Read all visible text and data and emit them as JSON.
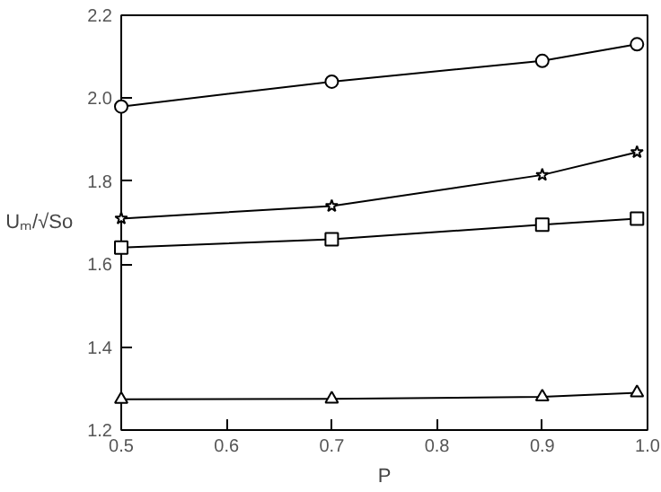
{
  "chart_data": {
    "type": "line",
    "xlabel": "P",
    "ylabel": "Uₘ/√So",
    "x": [
      0.5,
      0.7,
      0.9,
      0.99
    ],
    "series": [
      {
        "color": "#000000",
        "marker": "circle",
        "values": [
          1.98,
          2.04,
          2.09,
          2.13
        ]
      },
      {
        "color": "#000000",
        "marker": "star",
        "values": [
          1.71,
          1.74,
          1.815,
          1.87
        ]
      },
      {
        "color": "#000000",
        "marker": "square",
        "values": [
          1.64,
          1.66,
          1.695,
          1.71
        ]
      },
      {
        "color": "#000000",
        "marker": "triangle",
        "values": [
          1.274,
          1.275,
          1.28,
          1.29
        ]
      }
    ],
    "xlim": [
      0.5,
      1.0
    ],
    "xticks": [
      0.5,
      0.6,
      0.7,
      0.8,
      0.9,
      {
        "value": 1.0,
        "label": "1.0"
      }
    ],
    "ylim": [
      1.2,
      2.2
    ],
    "yticks": [
      {
        "value": 1.2,
        "label": "1.2"
      },
      {
        "value": 1.4,
        "label": "1.4"
      },
      {
        "value": 1.6,
        "label": "1.6"
      },
      {
        "value": 1.8,
        "label": "1.8"
      },
      {
        "value": 2.0,
        "label": "2.0"
      },
      {
        "value": 2.2,
        "label": "2.2"
      }
    ],
    "grid": false,
    "line_style": "solid"
  }
}
